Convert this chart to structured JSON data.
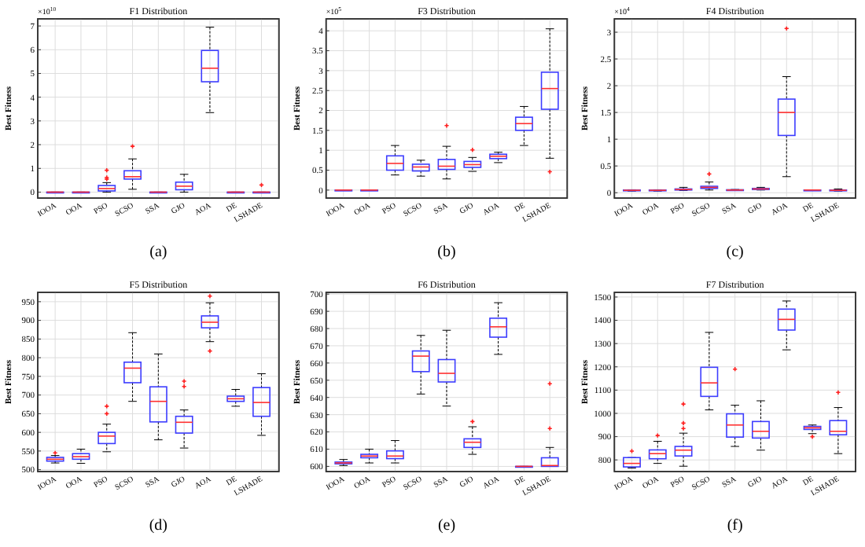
{
  "chart_data": [
    {
      "type": "box",
      "title": "F1 Distribution",
      "ylabel": "Best Fitness",
      "annotations": [
        "×10$^{10}$",
        "(a)"
      ],
      "categories": [
        "IOOA",
        "OOA",
        "PSO",
        "SCSO",
        "SSA",
        "GJO",
        "AOA",
        "DE",
        "LSHADE"
      ],
      "ylim": [
        -0.25,
        7.3
      ],
      "yticks": [
        0,
        1,
        2,
        3,
        4,
        5,
        6,
        7
      ],
      "grid": true,
      "series": [
        {
          "color": "#3d3dff",
          "boxes": [
            {
              "low": 0,
              "q1": 0,
              "median": 0,
              "q3": 0,
              "high": 0
            },
            {
              "low": 0,
              "q1": 0,
              "median": 0,
              "q3": 0,
              "high": 0
            },
            {
              "low": 0,
              "q1": 0.05,
              "median": 0.15,
              "q3": 0.28,
              "high": 0.4,
              "outliers": [
                0.55,
                0.62,
                0.92
              ]
            },
            {
              "low": 0.12,
              "q1": 0.55,
              "median": 0.65,
              "q3": 0.9,
              "high": 1.4,
              "outliers": [
                1.93
              ]
            },
            {
              "low": 0,
              "q1": 0,
              "median": 0,
              "q3": 0,
              "high": 0
            },
            {
              "low": 0,
              "q1": 0.1,
              "median": 0.25,
              "q3": 0.42,
              "high": 0.75
            },
            {
              "low": 3.35,
              "q1": 4.65,
              "median": 5.22,
              "q3": 5.97,
              "high": 6.95
            },
            {
              "low": 0,
              "q1": 0,
              "median": 0,
              "q3": 0,
              "high": 0
            },
            {
              "low": 0,
              "q1": 0,
              "median": 0,
              "q3": 0,
              "high": 0,
              "outliers": [
                0.3
              ]
            }
          ]
        }
      ]
    },
    {
      "type": "box",
      "title": "F3 Distribution",
      "ylabel": "Best Fitness",
      "annotations": [
        "×10$^{5}$",
        "(b)"
      ],
      "categories": [
        "IOOA",
        "OOA",
        "PSO",
        "SCSO",
        "SSA",
        "GJO",
        "AOA",
        "DE",
        "LSHADE"
      ],
      "ylim": [
        -0.2,
        4.3
      ],
      "yticks": [
        0,
        0.5,
        1,
        1.5,
        2,
        2.5,
        3,
        3.5,
        4
      ],
      "grid": true,
      "series": [
        {
          "color": "#3d3dff",
          "boxes": [
            {
              "low": 0,
              "q1": 0,
              "median": 0,
              "q3": 0,
              "high": 0
            },
            {
              "low": 0,
              "q1": 0,
              "median": 0,
              "q3": 0,
              "high": 0
            },
            {
              "low": 0.38,
              "q1": 0.5,
              "median": 0.67,
              "q3": 0.86,
              "high": 1.12
            },
            {
              "low": 0.35,
              "q1": 0.48,
              "median": 0.58,
              "q3": 0.65,
              "high": 0.75
            },
            {
              "low": 0.28,
              "q1": 0.52,
              "median": 0.6,
              "q3": 0.77,
              "high": 1.1,
              "outliers": [
                1.62
              ]
            },
            {
              "low": 0.47,
              "q1": 0.57,
              "median": 0.64,
              "q3": 0.72,
              "high": 0.82,
              "outliers": [
                1.01
              ]
            },
            {
              "low": 0.69,
              "q1": 0.79,
              "median": 0.85,
              "q3": 0.9,
              "high": 0.95
            },
            {
              "low": 1.12,
              "q1": 1.5,
              "median": 1.67,
              "q3": 1.83,
              "high": 2.1
            },
            {
              "low": 0.8,
              "q1": 2.03,
              "median": 2.55,
              "q3": 2.96,
              "high": 4.05,
              "outliers": [
                0.46
              ]
            }
          ]
        }
      ]
    },
    {
      "type": "box",
      "title": "F4 Distribution",
      "ylabel": "Best Fitness",
      "annotations": [
        "×10$^{4}$",
        "(c)"
      ],
      "categories": [
        "IOOA",
        "OOA",
        "PSO",
        "SCSO",
        "SSA",
        "GJO",
        "AOA",
        "DE",
        "LSHADE"
      ],
      "ylim": [
        -0.1,
        3.25
      ],
      "yticks": [
        0,
        0.5,
        1,
        1.5,
        2,
        2.5,
        3
      ],
      "grid": true,
      "series": [
        {
          "color": "#3d3dff",
          "boxes": [
            {
              "low": 0.03,
              "q1": 0.04,
              "median": 0.045,
              "q3": 0.05,
              "high": 0.055
            },
            {
              "low": 0.03,
              "q1": 0.04,
              "median": 0.045,
              "q3": 0.05,
              "high": 0.055
            },
            {
              "low": 0.04,
              "q1": 0.05,
              "median": 0.06,
              "q3": 0.07,
              "high": 0.1
            },
            {
              "low": 0.05,
              "q1": 0.08,
              "median": 0.1,
              "q3": 0.12,
              "high": 0.2,
              "outliers": [
                0.35
              ]
            },
            {
              "low": 0.04,
              "q1": 0.045,
              "median": 0.05,
              "q3": 0.055,
              "high": 0.06
            },
            {
              "low": 0.05,
              "q1": 0.06,
              "median": 0.07,
              "q3": 0.08,
              "high": 0.1
            },
            {
              "low": 0.3,
              "q1": 1.07,
              "median": 1.5,
              "q3": 1.75,
              "high": 2.17,
              "outliers": [
                3.07
              ]
            },
            {
              "low": 0.05,
              "q1": 0.05,
              "median": 0.05,
              "q3": 0.05,
              "high": 0.05
            },
            {
              "low": 0.03,
              "q1": 0.04,
              "median": 0.045,
              "q3": 0.05,
              "high": 0.07
            }
          ]
        }
      ]
    },
    {
      "type": "box",
      "title": "F5 Distribution",
      "ylabel": "Best Fitness",
      "annotations": [
        "(d)"
      ],
      "categories": [
        "IOOA",
        "OOA",
        "PSO",
        "SCSO",
        "SSA",
        "GJO",
        "AOA",
        "DE",
        "LSHADE"
      ],
      "ylim": [
        495,
        975
      ],
      "yticks": [
        500,
        550,
        600,
        650,
        700,
        750,
        800,
        850,
        900,
        950
      ],
      "grid": true,
      "series": [
        {
          "color": "#3d3dff",
          "boxes": [
            {
              "low": 518,
              "q1": 523,
              "median": 528,
              "q3": 533,
              "high": 538,
              "outliers": [
                545
              ]
            },
            {
              "low": 517,
              "q1": 528,
              "median": 535,
              "q3": 543,
              "high": 555
            },
            {
              "low": 548,
              "q1": 570,
              "median": 590,
              "q3": 600,
              "high": 622,
              "outliers": [
                650,
                670
              ]
            },
            {
              "low": 683,
              "q1": 733,
              "median": 772,
              "q3": 788,
              "high": 867
            },
            {
              "low": 580,
              "q1": 628,
              "median": 683,
              "q3": 722,
              "high": 810
            },
            {
              "low": 558,
              "q1": 598,
              "median": 627,
              "q3": 643,
              "high": 660,
              "outliers": [
                723,
                737
              ]
            },
            {
              "low": 843,
              "q1": 880,
              "median": 895,
              "q3": 912,
              "high": 947,
              "outliers": [
                818,
                965
              ]
            },
            {
              "low": 670,
              "q1": 683,
              "median": 690,
              "q3": 697,
              "high": 715
            },
            {
              "low": 592,
              "q1": 643,
              "median": 680,
              "q3": 720,
              "high": 757
            }
          ]
        }
      ]
    },
    {
      "type": "box",
      "title": "F6 Distribution",
      "ylabel": "Best Fitness",
      "annotations": [
        "(e)"
      ],
      "categories": [
        "IOOA",
        "OOA",
        "PSO",
        "SCSO",
        "SSA",
        "GJO",
        "AOA",
        "DE",
        "LSHADE"
      ],
      "ylim": [
        597,
        701
      ],
      "yticks": [
        600,
        610,
        620,
        630,
        640,
        650,
        660,
        670,
        680,
        690,
        700
      ],
      "grid": true,
      "series": [
        {
          "color": "#3d3dff",
          "boxes": [
            {
              "low": 600.5,
              "q1": 601.5,
              "median": 602,
              "q3": 602.5,
              "high": 604
            },
            {
              "low": 602,
              "q1": 605,
              "median": 606,
              "q3": 607,
              "high": 610
            },
            {
              "low": 602,
              "q1": 604.5,
              "median": 606,
              "q3": 609,
              "high": 615
            },
            {
              "low": 642,
              "q1": 655,
              "median": 664,
              "q3": 667,
              "high": 676
            },
            {
              "low": 635,
              "q1": 649,
              "median": 654,
              "q3": 662,
              "high": 679
            },
            {
              "low": 607,
              "q1": 611,
              "median": 614,
              "q3": 616,
              "high": 623,
              "outliers": [
                626
              ]
            },
            {
              "low": 665,
              "q1": 675,
              "median": 681,
              "q3": 686,
              "high": 695
            },
            {
              "low": 600,
              "q1": 600,
              "median": 600,
              "q3": 600,
              "high": 600
            },
            {
              "low": 600,
              "q1": 600,
              "median": 600.5,
              "q3": 605,
              "high": 611,
              "outliers": [
                622,
                648
              ]
            }
          ]
        }
      ]
    },
    {
      "type": "box",
      "title": "F7 Distribution",
      "ylabel": "Best Fitness",
      "annotations": [
        "(f)"
      ],
      "categories": [
        "IOOA",
        "OOA",
        "PSO",
        "SCSO",
        "SSA",
        "GJO",
        "AOA",
        "DE",
        "LSHADE"
      ],
      "ylim": [
        750,
        1520
      ],
      "yticks": [
        800,
        900,
        1000,
        1100,
        1200,
        1300,
        1400,
        1500
      ],
      "grid": true,
      "series": [
        {
          "color": "#3d3dff",
          "boxes": [
            {
              "low": 765,
              "q1": 770,
              "median": 785,
              "q3": 810,
              "high": 810,
              "outliers": [
                838
              ]
            },
            {
              "low": 785,
              "q1": 805,
              "median": 827,
              "q3": 843,
              "high": 880,
              "outliers": [
                905
              ]
            },
            {
              "low": 773,
              "q1": 817,
              "median": 842,
              "q3": 858,
              "high": 915,
              "outliers": [
                935,
                958,
                1040
              ]
            },
            {
              "low": 1015,
              "q1": 1073,
              "median": 1131,
              "q3": 1198,
              "high": 1348
            },
            {
              "low": 858,
              "q1": 898,
              "median": 950,
              "q3": 998,
              "high": 1035,
              "outliers": [
                1190
              ]
            },
            {
              "low": 842,
              "q1": 894,
              "median": 923,
              "q3": 965,
              "high": 1054
            },
            {
              "low": 1273,
              "q1": 1358,
              "median": 1404,
              "q3": 1448,
              "high": 1483
            },
            {
              "low": 913,
              "q1": 931,
              "median": 938,
              "q3": 944,
              "high": 950,
              "outliers": [
                900
              ]
            },
            {
              "low": 827,
              "q1": 908,
              "median": 923,
              "q3": 969,
              "high": 1025,
              "outliers": [
                1090
              ]
            }
          ]
        }
      ]
    }
  ]
}
